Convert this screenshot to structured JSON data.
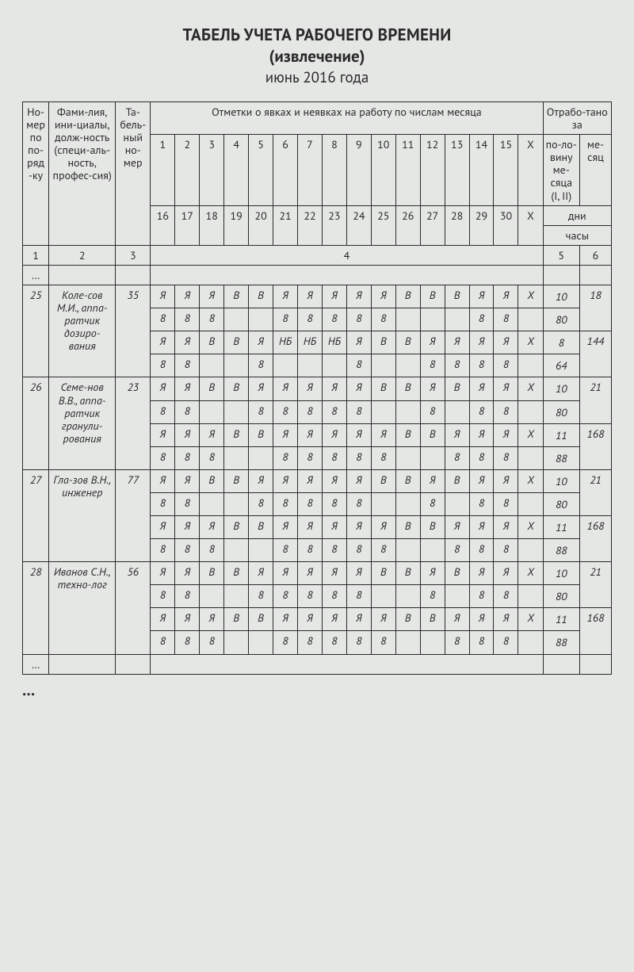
{
  "title": {
    "line1": "ТАБЕЛЬ УЧЕТА РАБОЧЕГО ВРЕМЕНИ",
    "line2": "(извлечение)",
    "date": "июнь 2016 года"
  },
  "headers": {
    "col1": "Но-мер по по-ряд-ку",
    "col2": "Фами-лия, ини-циалы, долж-ность (специ-аль-ность, профес-сия)",
    "col3": "Та-бель-ный но-мер",
    "marks_span": "Отметки о явках и неявках на работу по числам месяца",
    "worked_span": "Отрабо-тано за",
    "half": "по-ло-вину ме-сяца (I, II)",
    "month": "ме-сяц",
    "days": "дни",
    "hours": "часы",
    "days_1_15": [
      "1",
      "2",
      "3",
      "4",
      "5",
      "6",
      "7",
      "8",
      "9",
      "10",
      "11",
      "12",
      "13",
      "14",
      "15",
      "X"
    ],
    "days_16_30": [
      "16",
      "17",
      "18",
      "19",
      "20",
      "21",
      "22",
      "23",
      "24",
      "25",
      "26",
      "27",
      "28",
      "29",
      "30",
      "X"
    ],
    "numrow": {
      "c1": "1",
      "c2": "2",
      "c3": "3",
      "c4": "4",
      "c5": "5",
      "c6": "6"
    },
    "ellipsis": "…"
  },
  "employees": [
    {
      "num": "25",
      "name": "Коле-сов М.И., аппа-ратчик дозиро-вания",
      "tab": "35",
      "r1": [
        "Я",
        "Я",
        "Я",
        "В",
        "В",
        "Я",
        "Я",
        "Я",
        "Я",
        "Я",
        "В",
        "В",
        "В",
        "Я",
        "Я",
        "X"
      ],
      "r2": [
        "8",
        "8",
        "8",
        "",
        "",
        "8",
        "8",
        "8",
        "8",
        "8",
        "",
        "",
        "",
        "8",
        "8",
        ""
      ],
      "r3": [
        "Я",
        "Я",
        "В",
        "В",
        "Я",
        "НБ",
        "НБ",
        "НБ",
        "Я",
        "В",
        "В",
        "Я",
        "Я",
        "Я",
        "Я",
        "X"
      ],
      "r4": [
        "8",
        "8",
        "",
        "",
        "8",
        "",
        "",
        "",
        "8",
        "",
        "",
        "8",
        "8",
        "8",
        "8",
        ""
      ],
      "half1": "10",
      "half2": "8",
      "h1": "80",
      "h2": "64",
      "month_days": "18",
      "month_hours": "144"
    },
    {
      "num": "26",
      "name": "Семе-нов В.В., аппа-ратчик гранули-рования",
      "tab": "23",
      "r1": [
        "Я",
        "Я",
        "В",
        "В",
        "Я",
        "Я",
        "Я",
        "Я",
        "Я",
        "В",
        "В",
        "Я",
        "В",
        "Я",
        "Я",
        "X"
      ],
      "r2": [
        "8",
        "8",
        "",
        "",
        "8",
        "8",
        "8",
        "8",
        "8",
        "",
        "",
        "8",
        "",
        "8",
        "8",
        ""
      ],
      "r3": [
        "Я",
        "Я",
        "Я",
        "В",
        "В",
        "Я",
        "Я",
        "Я",
        "Я",
        "Я",
        "В",
        "В",
        "Я",
        "Я",
        "Я",
        "X"
      ],
      "r4": [
        "8",
        "8",
        "8",
        "",
        "",
        "8",
        "8",
        "8",
        "8",
        "8",
        "",
        "",
        "8",
        "8",
        "8",
        ""
      ],
      "half1": "10",
      "half2": "11",
      "h1": "80",
      "h2": "88",
      "month_days": "21",
      "month_hours": "168"
    },
    {
      "num": "27",
      "name": "Гла-зов В.Н., инженер",
      "tab": "77",
      "r1": [
        "Я",
        "Я",
        "В",
        "В",
        "Я",
        "Я",
        "Я",
        "Я",
        "Я",
        "В",
        "В",
        "Я",
        "В",
        "Я",
        "Я",
        "X"
      ],
      "r2": [
        "8",
        "8",
        "",
        "",
        "8",
        "8",
        "8",
        "8",
        "8",
        "",
        "",
        "8",
        "",
        "8",
        "8",
        ""
      ],
      "r3": [
        "Я",
        "Я",
        "Я",
        "В",
        "В",
        "Я",
        "Я",
        "Я",
        "Я",
        "Я",
        "В",
        "В",
        "Я",
        "Я",
        "Я",
        "X"
      ],
      "r4": [
        "8",
        "8",
        "8",
        "",
        "",
        "8",
        "8",
        "8",
        "8",
        "8",
        "",
        "",
        "8",
        "8",
        "8",
        ""
      ],
      "half1": "10",
      "half2": "11",
      "h1": "80",
      "h2": "88",
      "month_days": "21",
      "month_hours": "168"
    },
    {
      "num": "28",
      "name": "Иванов С.Н., техно-лог",
      "tab": "56",
      "r1": [
        "Я",
        "Я",
        "В",
        "В",
        "Я",
        "Я",
        "Я",
        "Я",
        "Я",
        "В",
        "В",
        "Я",
        "В",
        "Я",
        "Я",
        "X"
      ],
      "r2": [
        "8",
        "8",
        "",
        "",
        "8",
        "8",
        "8",
        "8",
        "8",
        "",
        "",
        "8",
        "",
        "8",
        "8",
        ""
      ],
      "r3": [
        "Я",
        "Я",
        "Я",
        "В",
        "В",
        "Я",
        "Я",
        "Я",
        "Я",
        "Я",
        "В",
        "В",
        "Я",
        "Я",
        "Я",
        "X"
      ],
      "r4": [
        "8",
        "8",
        "8",
        "",
        "",
        "8",
        "8",
        "8",
        "8",
        "8",
        "",
        "",
        "8",
        "8",
        "8",
        ""
      ],
      "half1": "10",
      "half2": "11",
      "h1": "80",
      "h2": "88",
      "month_days": "21",
      "month_hours": "168"
    }
  ],
  "footer_dots": "…"
}
